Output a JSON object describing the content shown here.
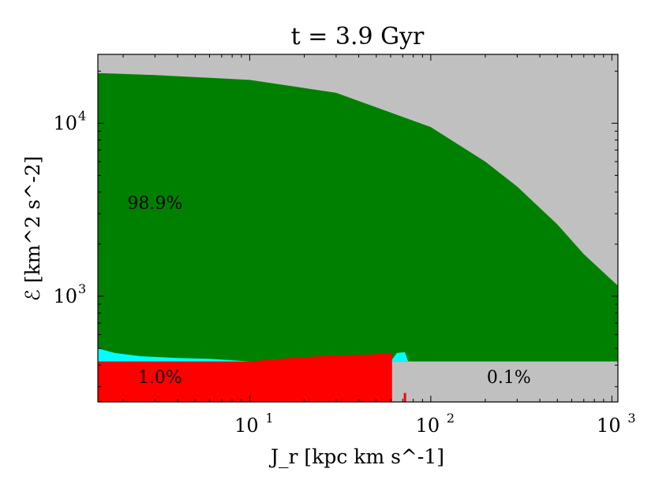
{
  "chart_data": {
    "type": "area",
    "title": "t = 3.9 Gyr",
    "xlabel": "J_r [kpc km s^-1]",
    "ylabel": "ℰ [km^2 s^-2]",
    "xscale": "log",
    "yscale": "log",
    "xlim": [
      1.45,
      1080
    ],
    "ylim": [
      245,
      25000
    ],
    "x_ticks": [
      {
        "value": 10,
        "label": "10",
        "exp": "1"
      },
      {
        "value": 100,
        "label": "10",
        "exp": "2"
      },
      {
        "value": 1000,
        "label": "10",
        "exp": "3"
      }
    ],
    "y_ticks": [
      {
        "value": 1000,
        "label": "10",
        "exp": "3"
      },
      {
        "value": 10000,
        "label": "10",
        "exp": "4"
      }
    ],
    "series": [
      {
        "color": "#c0c0c0",
        "region": "background",
        "fill": "whole plot above green boundary"
      },
      {
        "color": "#008000",
        "x": [
          1.45,
          3,
          10,
          30,
          100,
          200,
          300,
          500,
          700,
          1080
        ],
        "upper": [
          19500,
          19000,
          17800,
          15000,
          9500,
          6000,
          4300,
          2600,
          1750,
          1150
        ],
        "lower": [
          420,
          420,
          420,
          420,
          420,
          420,
          420,
          420,
          420,
          420
        ],
        "label": "98.9%"
      },
      {
        "color": "#00ffff",
        "x": [
          1.45,
          1.8,
          2.5,
          4,
          6,
          10,
          60,
          65,
          72,
          75,
          1080
        ],
        "upper": [
          500,
          470,
          450,
          440,
          435,
          420,
          420,
          470,
          475,
          420,
          420
        ],
        "lower": [
          420,
          420,
          420,
          420,
          420,
          420,
          420,
          420,
          420,
          420,
          420
        ],
        "label": "0.1%"
      },
      {
        "color": "#ff0000",
        "x": [
          1.45,
          10,
          15,
          20,
          25,
          30,
          40,
          50,
          58,
          61,
          61.1
        ],
        "upper": [
          420,
          420,
          435,
          445,
          450,
          455,
          458,
          462,
          470,
          470,
          420
        ],
        "lower": [
          245,
          245,
          245,
          245,
          245,
          245,
          245,
          245,
          245,
          245,
          245
        ],
        "spike_x": 72,
        "label": "1.0%"
      }
    ],
    "annotations": [
      {
        "text": "98.9%",
        "x": 3.0,
        "y": 3200
      },
      {
        "text": "1.0%",
        "x": 3.2,
        "y": 315
      },
      {
        "text": "0.1%",
        "x": 270,
        "y": 315
      }
    ],
    "grid": false
  }
}
